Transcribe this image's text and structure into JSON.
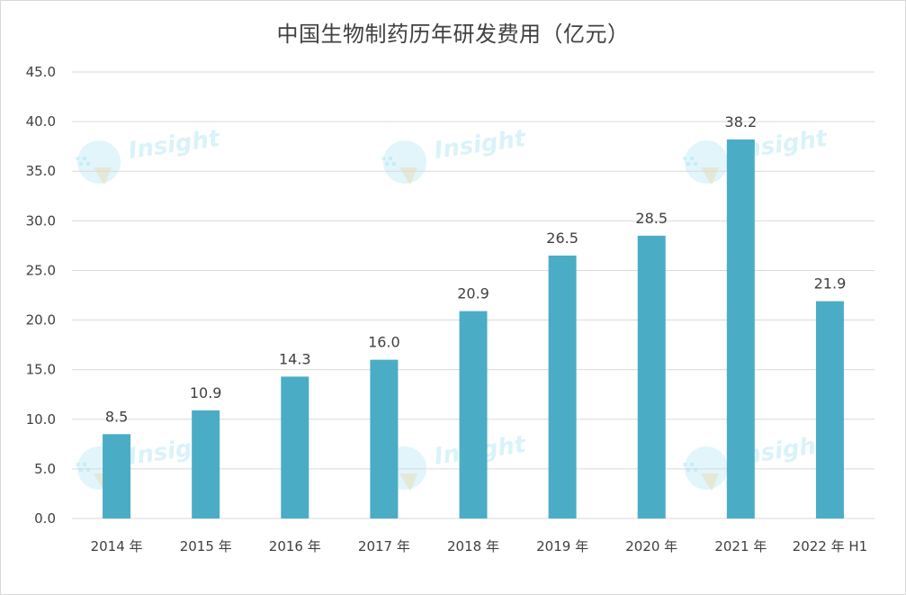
{
  "chart_data": {
    "type": "bar",
    "title": "中国生物制药历年研发费用（亿元）",
    "categories": [
      "2014 年",
      "2015 年",
      "2016 年",
      "2017 年",
      "2018 年",
      "2019 年",
      "2020 年",
      "2021 年",
      "2022 年 H1"
    ],
    "values": [
      8.5,
      10.9,
      14.3,
      16.0,
      20.9,
      26.5,
      28.5,
      38.2,
      21.9
    ],
    "value_labels": [
      "8.5",
      "10.9",
      "14.3",
      "16.0",
      "20.9",
      "26.5",
      "28.5",
      "38.2",
      "21.9"
    ],
    "ylim": [
      0,
      45
    ],
    "yticks": [
      "0.0",
      "5.0",
      "10.0",
      "15.0",
      "20.0",
      "25.0",
      "30.0",
      "35.0",
      "40.0",
      "45.0"
    ],
    "ytick_values": [
      0,
      5,
      10,
      15,
      20,
      25,
      30,
      35,
      40,
      45
    ],
    "xlabel": "",
    "ylabel": "",
    "grid": true,
    "bar_color": "#4bacc6",
    "grid_color": "#d9d9d9"
  },
  "watermark": {
    "text": "Insight",
    "color": "#5bc8e8"
  }
}
